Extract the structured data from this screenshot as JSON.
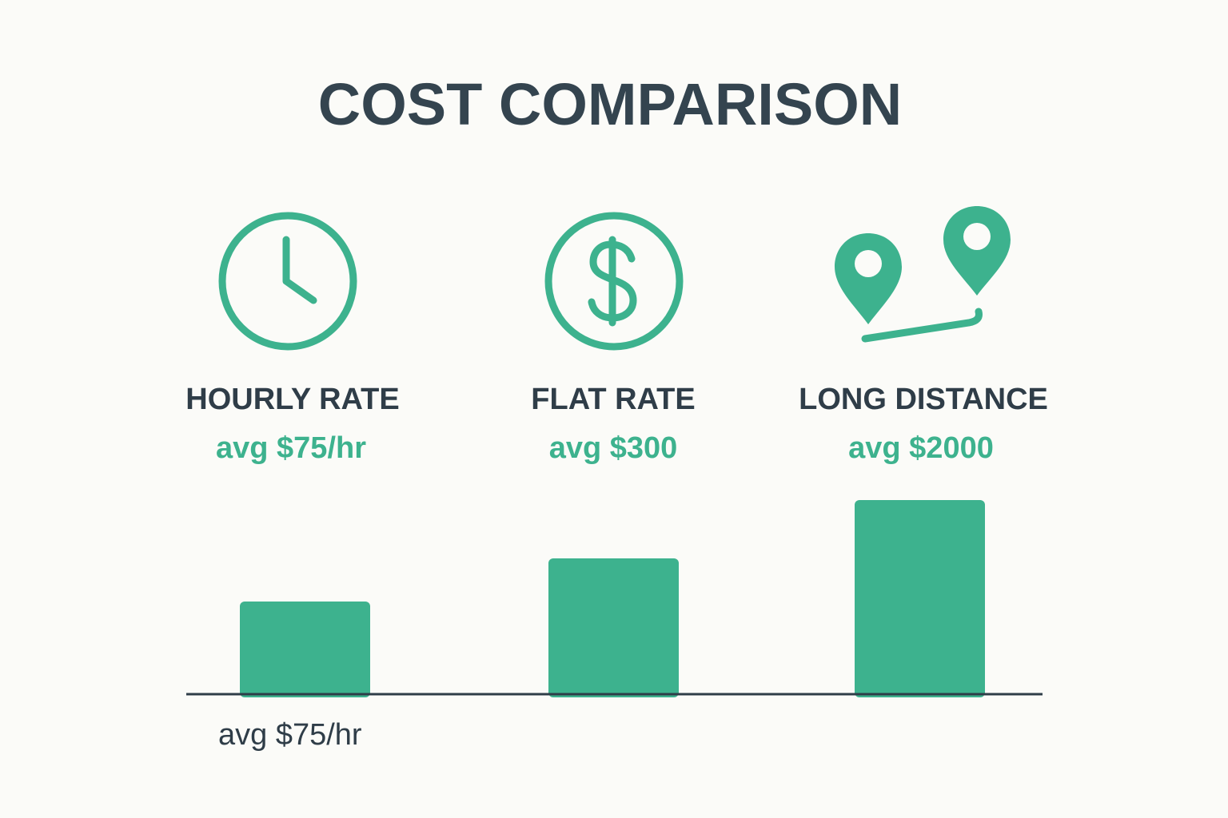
{
  "title": "COST COMPARISON",
  "items": [
    {
      "label": "HOURLY RATE",
      "price": "avg $75/hr"
    },
    {
      "label": "FLAT RATE",
      "price": "avg $300"
    },
    {
      "label": "LONG DISTANCE",
      "price": "avg $2000"
    }
  ],
  "footnote": "avg $75/hr"
}
